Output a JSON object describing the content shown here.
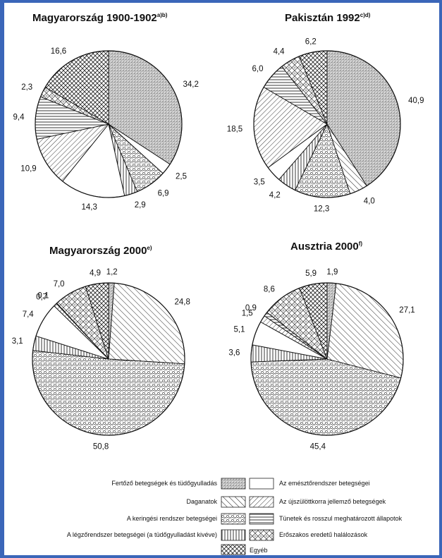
{
  "chart_data": [
    {
      "type": "pie",
      "title": "Magyarország 1900-1902",
      "title_sup": "a)b)",
      "slices": [
        {
          "category": "Fertőző betegségek és tüdőgyulladás",
          "value": 34.2,
          "label": "34,2"
        },
        {
          "category": "Az emésztőrendszer betegségei",
          "value": 2.5,
          "label": "2,5"
        },
        {
          "category": "A keringési rendszer betegségei",
          "value": 6.9,
          "label": "6,9"
        },
        {
          "category": "A légzőrendszer betegségei (a tüdőgyulladást kivéve)",
          "value": 2.9,
          "label": "2,9"
        },
        {
          "category": "Az emésztőrendszer betegségei",
          "value": 14.3,
          "label": "14,3"
        },
        {
          "category": "Daganatok",
          "value": 10.9,
          "label": "10,9"
        },
        {
          "category": "Tünetek és rosszul meghatározott állapotok",
          "value": 9.4,
          "label": "9,4"
        },
        {
          "category": "Erőszakos eredetű halálozások",
          "value": 2.3,
          "label": "2,3"
        },
        {
          "category": "Egyéb",
          "value": 16.6,
          "label": "16,6"
        }
      ]
    },
    {
      "type": "pie",
      "title": "Pakisztán 1992",
      "title_sup": "c)d)",
      "slices": [
        {
          "category": "Fertőző betegségek és tüdőgyulladás",
          "value": 40.9,
          "label": "40,9"
        },
        {
          "category": "Daganatok",
          "value": 4.0,
          "label": "4,0"
        },
        {
          "category": "A keringési rendszer betegségei",
          "value": 12.3,
          "label": "12,3"
        },
        {
          "category": "A légzőrendszer betegségei (a tüdőgyulladást kivéve)",
          "value": 4.2,
          "label": "4,2"
        },
        {
          "category": "Az emésztőrendszer betegségei",
          "value": 3.5,
          "label": "3,5"
        },
        {
          "category": "Az újszülöttkorra jellemző betegségek",
          "value": 18.5,
          "label": "18,5"
        },
        {
          "category": "Tünetek és rosszul meghatározott állapotok",
          "value": 6.0,
          "label": "6,0"
        },
        {
          "category": "Erőszakos eredetű halálozások",
          "value": 4.4,
          "label": "4,4"
        },
        {
          "category": "Egyéb",
          "value": 6.2,
          "label": "6,2"
        }
      ]
    },
    {
      "type": "pie",
      "title": "Magyarország 2000",
      "title_sup": "e)",
      "slices": [
        {
          "category": "Fertőző betegségek és tüdőgyulladás",
          "value": 1.2,
          "label": "1,2"
        },
        {
          "category": "Daganatok",
          "value": 24.8,
          "label": "24,8"
        },
        {
          "category": "A keringési rendszer betegségei",
          "value": 50.8,
          "label": "50,8"
        },
        {
          "category": "A légzőrendszer betegségei (a tüdőgyulladást kivéve)",
          "value": 3.1,
          "label": "3,1"
        },
        {
          "category": "Az emésztőrendszer betegségei",
          "value": 7.4,
          "label": "7,4"
        },
        {
          "category": "Az újszülöttkorra jellemző betegségek",
          "value": 0.7,
          "label": "0,7"
        },
        {
          "category": "Tünetek és rosszul meghatározott állapotok",
          "value": 0.1,
          "label": "0,1"
        },
        {
          "category": "Erőszakos eredetű halálozások",
          "value": 7.0,
          "label": "7,0"
        },
        {
          "category": "Egyéb",
          "value": 4.9,
          "label": "4,9"
        }
      ]
    },
    {
      "type": "pie",
      "title": "Ausztria 2000",
      "title_sup": "f)",
      "slices": [
        {
          "category": "Fertőző betegségek és tüdőgyulladás",
          "value": 1.9,
          "label": "1,9"
        },
        {
          "category": "Daganatok",
          "value": 27.1,
          "label": "27,1"
        },
        {
          "category": "A keringési rendszer betegségei",
          "value": 45.4,
          "label": "45,4"
        },
        {
          "category": "A légzőrendszer betegségei (a tüdőgyulladást kivéve)",
          "value": 3.6,
          "label": "3,6"
        },
        {
          "category": "Az emésztőrendszer betegségei",
          "value": 5.1,
          "label": "5,1"
        },
        {
          "category": "Az újszülöttkorra jellemző betegségek",
          "value": 1.5,
          "label": "1,5"
        },
        {
          "category": "Tünetek és rosszul meghatározott állapotok",
          "value": 0.9,
          "label": "0,9"
        },
        {
          "category": "Erőszakos eredetű halálozások",
          "value": 8.6,
          "label": "8,6"
        },
        {
          "category": "Egyéb",
          "value": 5.9,
          "label": "5,9"
        }
      ]
    }
  ],
  "legend": {
    "left": [
      {
        "label": "Fertőző betegségek és tüdőgyulladás",
        "pattern": "infectious"
      },
      {
        "label": "Daganatok",
        "pattern": "tumor"
      },
      {
        "label": "A keringési rendszer betegségei",
        "pattern": "circulatory"
      },
      {
        "label": "A légzőrendszer betegségei (a tüdőgyulladást kivéve)",
        "pattern": "respiratory"
      },
      {
        "label": "",
        "pattern": "other"
      }
    ],
    "right": [
      {
        "label": "Az emésztőrendszer betegségei",
        "pattern": "digestive"
      },
      {
        "label": "Az újszülöttkorra jellemző betegségek",
        "pattern": "newborn"
      },
      {
        "label": "Tünetek és rosszul meghatározott állapotok",
        "pattern": "symptoms"
      },
      {
        "label": "Erőszakos eredetű halálozások",
        "pattern": "violent"
      },
      {
        "label": "Egyéb",
        "pattern": "none"
      }
    ]
  },
  "colors": {
    "frame": "#3b66b9",
    "ink": "#111111",
    "paper": "#ffffff"
  }
}
